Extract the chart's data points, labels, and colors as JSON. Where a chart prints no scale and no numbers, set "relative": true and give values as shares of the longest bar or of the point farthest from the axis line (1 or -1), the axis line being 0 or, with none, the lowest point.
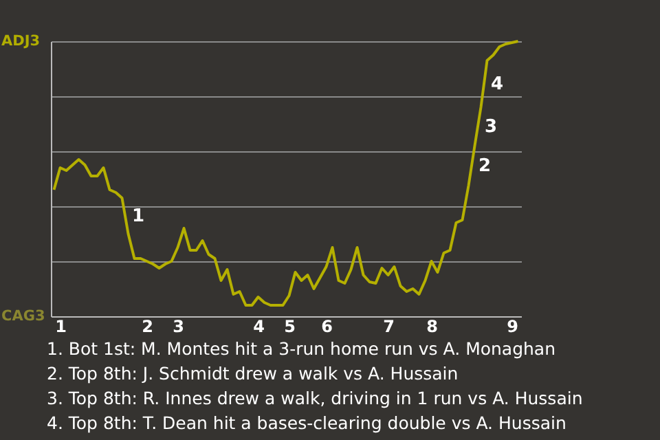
{
  "chart_data": {
    "type": "line",
    "relative": true,
    "categories": [
      null,
      "1",
      null,
      null,
      null,
      null,
      null,
      null,
      null,
      null,
      null,
      null,
      null,
      null,
      null,
      "2",
      null,
      null,
      null,
      null,
      "3",
      null,
      null,
      null,
      null,
      null,
      null,
      null,
      null,
      null,
      null,
      null,
      null,
      "4",
      null,
      null,
      null,
      null,
      "5",
      null,
      null,
      null,
      null,
      null,
      "6",
      null,
      null,
      null,
      null,
      null,
      null,
      null,
      null,
      null,
      "7",
      null,
      null,
      null,
      null,
      null,
      null,
      "8",
      null,
      null,
      null,
      null,
      null,
      null,
      null,
      null,
      null,
      null,
      null,
      null,
      "9",
      null
    ],
    "series": [
      {
        "color": "#b5b000",
        "values": [
          0.46,
          0.54,
          0.53,
          0.55,
          0.57,
          0.55,
          0.51,
          0.51,
          0.54,
          0.46,
          0.45,
          0.43,
          0.3,
          0.21,
          0.21,
          0.2,
          0.19,
          0.175,
          0.19,
          0.2,
          0.25,
          0.32,
          0.24,
          0.24,
          0.275,
          0.225,
          0.21,
          0.13,
          0.17,
          0.08,
          0.09,
          0.04,
          0.04,
          0.07,
          0.05,
          0.04,
          0.04,
          0.04,
          0.075,
          0.16,
          0.13,
          0.15,
          0.1,
          0.14,
          0.18,
          0.25,
          0.13,
          0.12,
          0.17,
          0.25,
          0.15,
          0.125,
          0.12,
          0.175,
          0.15,
          0.18,
          0.11,
          0.09,
          0.1,
          0.08,
          0.13,
          0.2,
          0.16,
          0.23,
          0.24,
          0.34,
          0.35,
          0.475,
          0.62,
          0.76,
          0.93,
          0.95,
          0.98,
          0.99,
          0.995,
          1.0
        ]
      }
    ],
    "grid": "y",
    "legend": false,
    "marker": "none",
    "line_style": "solid",
    "annotations": [
      "ADJ3",
      "CAG3",
      "1",
      "2",
      "3",
      "4",
      "1. Bot 1st: M. Montes hit a 3-run home run vs A. Monaghan",
      "2. Top 8th: J. Schmidt drew a walk vs A. Hussain",
      "3. Top 8th: R. Innes drew a walk, driving in 1 run vs A. Hussain",
      "4. Top 8th: T. Dean hit a bases-clearing double vs A. Hussain"
    ]
  }
}
